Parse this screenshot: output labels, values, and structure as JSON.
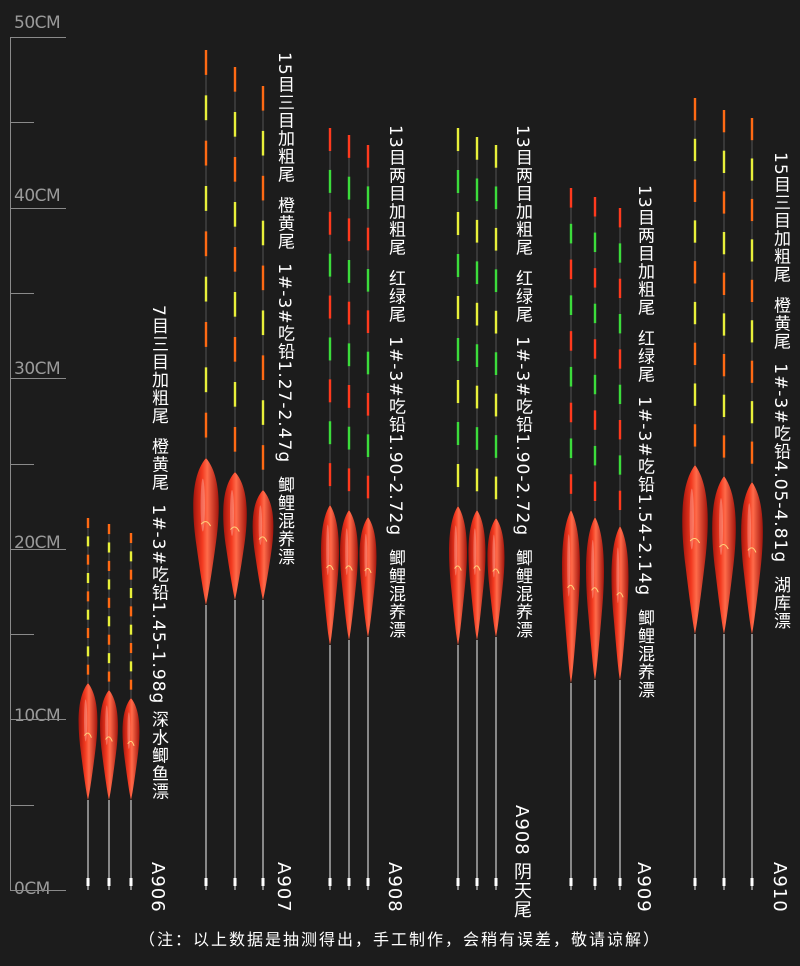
{
  "ruler": {
    "labels": [
      "50CM",
      "40CM",
      "30CM",
      "20CM",
      "10CM",
      "0CM"
    ]
  },
  "colors": {
    "background": "#1c1c1c",
    "body_red": "#e8281a",
    "tip_orange": "#ff6a14",
    "tip_yellow": "#e8f03a",
    "tip_green": "#3cdc3c",
    "stem": "#d0d0d0"
  },
  "groups": [
    {
      "model": "A906",
      "spec": "7目三目加粗尾  橙黄尾  1#-3#吃铅1.45-1.98g 深水鲫鱼漂",
      "tail": "orange-yellow"
    },
    {
      "model": "A907",
      "spec": "15目三目加粗尾  橙黄尾  1#-3#吃铅1.27-2.47g  鲫鲤混养漂",
      "tail": "orange-yellow"
    },
    {
      "model": "A908",
      "spec": "13目两目加粗尾  红绿尾  1#-3#吃铅1.90-2.72g  鲫鲤混养漂",
      "tail": "red-green"
    },
    {
      "model": "A908 阴天尾",
      "spec": "13目两目加粗尾  红绿尾  1#-3#吃铅1.90-2.72g  鲫鲤混养漂",
      "tail": "yellow-green"
    },
    {
      "model": "A909",
      "spec": "13目两目加粗尾  红绿尾  1#-3#吃铅1.54-2.14g  鲫鲤混养漂",
      "tail": "red-green"
    },
    {
      "model": "A910",
      "spec": "15目三目加粗尾  橙黄尾  1#-3#吃铅4.05-4.81g  湖库漂",
      "tail": "orange-yellow"
    }
  ],
  "footer": "（注：以上数据是抽测得出，手工制作，会稍有误差，敬请谅解）"
}
